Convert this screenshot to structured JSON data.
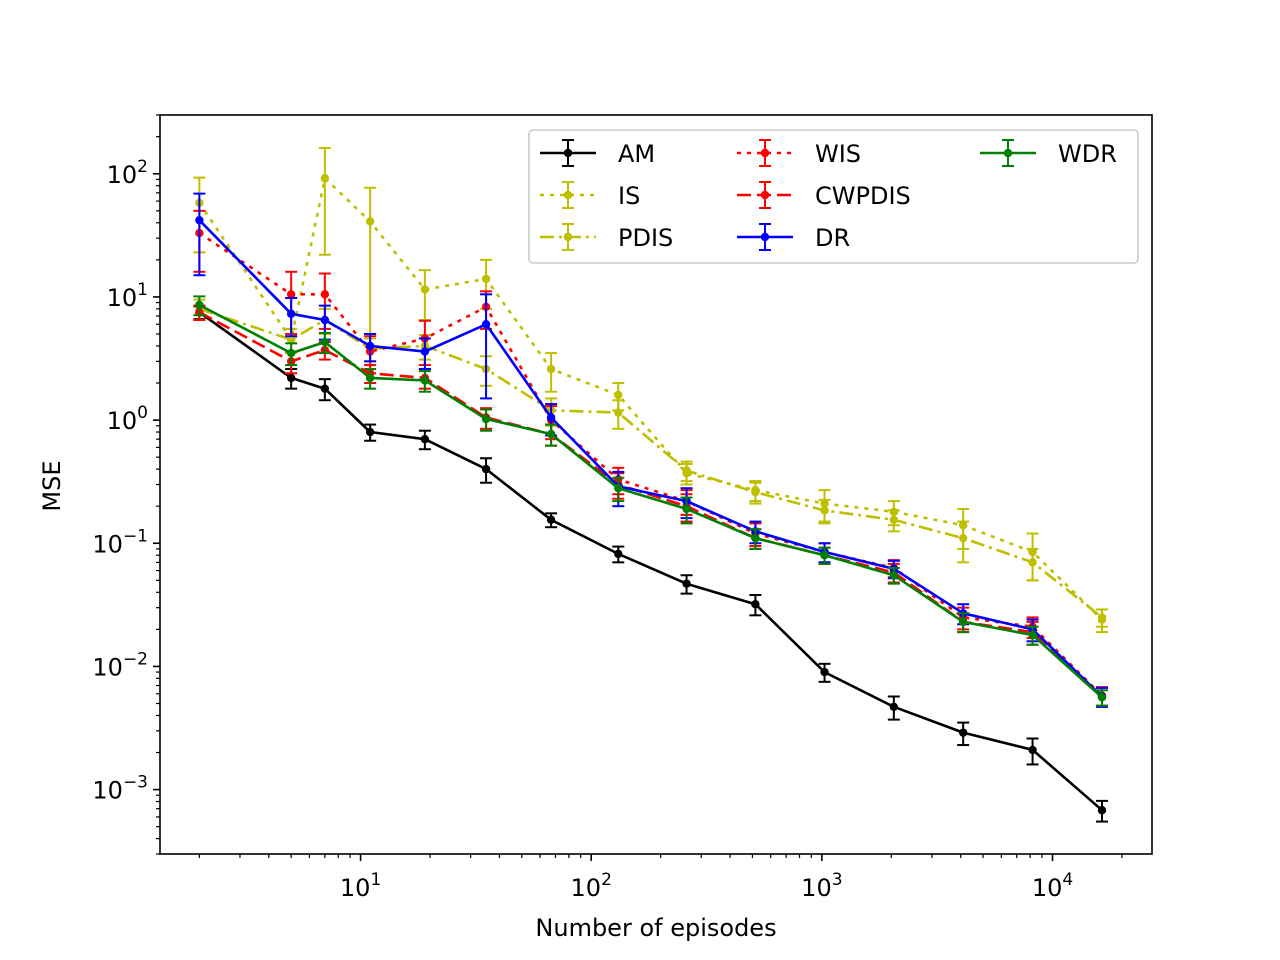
{
  "chart_data": {
    "type": "line",
    "title": "",
    "xlabel": "Number of episodes",
    "ylabel": "MSE",
    "xscale": "log",
    "yscale": "log",
    "xlim": [
      1.35,
      27000
    ],
    "ylim": [
      0.0003,
      300
    ],
    "grid": false,
    "legend_position": "top-right",
    "legend_columns": 3,
    "x_ticks": [
      {
        "value": 10,
        "base": "10",
        "exp": "1"
      },
      {
        "value": 100,
        "base": "10",
        "exp": "2"
      },
      {
        "value": 1000,
        "base": "10",
        "exp": "3"
      },
      {
        "value": 10000,
        "base": "10",
        "exp": "4"
      }
    ],
    "y_ticks": [
      {
        "value": 0.001,
        "base": "10",
        "exp": "−3"
      },
      {
        "value": 0.01,
        "base": "10",
        "exp": "−2"
      },
      {
        "value": 0.1,
        "base": "10",
        "exp": "−1"
      },
      {
        "value": 1,
        "base": "10",
        "exp": "0"
      },
      {
        "value": 10,
        "base": "10",
        "exp": "1"
      },
      {
        "value": 100,
        "base": "10",
        "exp": "2"
      }
    ],
    "series": [
      {
        "name": "AM",
        "color": "#000000",
        "linestyle": "solid",
        "x": [
          2,
          5,
          7,
          11,
          19,
          35,
          67,
          131,
          259,
          515,
          1027,
          2051,
          4099,
          8195,
          16387
        ],
        "y": [
          7.5,
          2.2,
          1.8,
          0.8,
          0.7,
          0.4,
          0.155,
          0.082,
          0.047,
          0.032,
          0.009,
          0.0047,
          0.0029,
          0.0021,
          0.00068
        ],
        "err": [
          0.9,
          0.4,
          0.35,
          0.12,
          0.12,
          0.09,
          0.02,
          0.012,
          0.008,
          0.006,
          0.0015,
          0.001,
          0.0006,
          0.0005,
          0.00013
        ]
      },
      {
        "name": "IS",
        "color": "#bfbf00",
        "linestyle": "dotted",
        "x": [
          2,
          5,
          7,
          11,
          19,
          35,
          67,
          131,
          259,
          515,
          1027,
          2051,
          4099,
          8195,
          16387
        ],
        "y": [
          58,
          4.5,
          92,
          41,
          11.5,
          14,
          2.6,
          1.6,
          0.37,
          0.27,
          0.21,
          0.18,
          0.14,
          0.085,
          0.024
        ],
        "err": [
          35,
          1.0,
          70,
          36,
          5,
          6,
          0.9,
          0.4,
          0.07,
          0.05,
          0.06,
          0.04,
          0.05,
          0.035,
          0.005
        ]
      },
      {
        "name": "PDIS",
        "color": "#bfbf00",
        "linestyle": "dashdot",
        "x": [
          2,
          5,
          7,
          11,
          19,
          35,
          67,
          131,
          259,
          515,
          1027,
          2051,
          4099,
          8195,
          16387
        ],
        "y": [
          8,
          4.5,
          6.5,
          3.8,
          4,
          2.6,
          1.2,
          1.15,
          0.39,
          0.26,
          0.185,
          0.155,
          0.11,
          0.07,
          0.025
        ],
        "err": [
          1.5,
          1.0,
          1.5,
          0.8,
          0.9,
          0.7,
          0.3,
          0.3,
          0.07,
          0.05,
          0.04,
          0.03,
          0.04,
          0.02,
          0.004
        ]
      },
      {
        "name": "WIS",
        "color": "#ff0000",
        "linestyle": "dotted",
        "x": [
          2,
          5,
          7,
          11,
          19,
          35,
          67,
          131,
          259,
          515,
          1027,
          2051,
          4099,
          8195,
          16387
        ],
        "y": [
          33,
          10.5,
          10.5,
          3.6,
          4.6,
          8.3,
          1.0,
          0.33,
          0.22,
          0.12,
          0.085,
          0.063,
          0.025,
          0.021,
          0.0058
        ],
        "err": [
          17,
          5.5,
          5,
          1.2,
          1.8,
          2.8,
          0.3,
          0.08,
          0.05,
          0.025,
          0.015,
          0.01,
          0.005,
          0.004,
          0.001
        ]
      },
      {
        "name": "CWPDIS",
        "color": "#ff0000",
        "linestyle": "dashed",
        "x": [
          2,
          5,
          7,
          11,
          19,
          35,
          67,
          131,
          259,
          515,
          1027,
          2051,
          4099,
          8195,
          16387
        ],
        "y": [
          7.5,
          3.0,
          3.7,
          2.4,
          2.2,
          1.05,
          0.77,
          0.3,
          0.2,
          0.11,
          0.08,
          0.058,
          0.023,
          0.019,
          0.0057
        ],
        "err": [
          1.0,
          0.6,
          0.6,
          0.4,
          0.4,
          0.2,
          0.15,
          0.07,
          0.05,
          0.02,
          0.012,
          0.01,
          0.004,
          0.004,
          0.001
        ]
      },
      {
        "name": "DR",
        "color": "#0000ff",
        "linestyle": "solid",
        "x": [
          2,
          5,
          7,
          11,
          19,
          35,
          67,
          131,
          259,
          515,
          1027,
          2051,
          4099,
          8195,
          16387
        ],
        "y": [
          42,
          7.3,
          6.5,
          4.0,
          3.6,
          6.0,
          1.05,
          0.29,
          0.22,
          0.125,
          0.085,
          0.062,
          0.027,
          0.02,
          0.0057
        ],
        "err": [
          27,
          2.5,
          2.0,
          1.0,
          1.0,
          4.5,
          0.3,
          0.09,
          0.06,
          0.025,
          0.015,
          0.01,
          0.005,
          0.004,
          0.001
        ]
      },
      {
        "name": "WDR",
        "color": "#008000",
        "linestyle": "solid",
        "x": [
          2,
          5,
          7,
          11,
          19,
          35,
          67,
          131,
          259,
          515,
          1027,
          2051,
          4099,
          8195,
          16387
        ],
        "y": [
          8.6,
          3.5,
          4.3,
          2.2,
          2.1,
          1.02,
          0.77,
          0.28,
          0.19,
          0.11,
          0.08,
          0.055,
          0.023,
          0.018,
          0.0056
        ],
        "err": [
          1.5,
          0.7,
          0.8,
          0.4,
          0.4,
          0.2,
          0.15,
          0.06,
          0.045,
          0.02,
          0.012,
          0.008,
          0.004,
          0.003,
          0.0008
        ]
      }
    ]
  }
}
